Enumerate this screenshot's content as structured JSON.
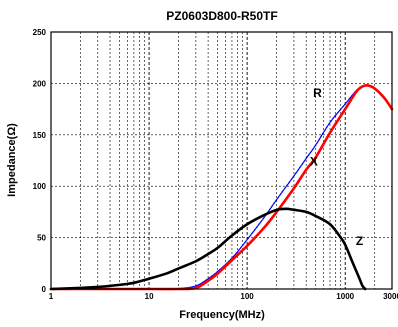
{
  "chart_data": {
    "type": "line",
    "title": "PZ0603D800-R50TF",
    "xlabel": "Frequency(MHz)",
    "ylabel": "Impedance(Ω)",
    "x_scale": "log",
    "xlim": [
      1,
      3000
    ],
    "ylim": [
      0,
      250
    ],
    "x_ticks": [
      {
        "value": 1,
        "label": "1"
      },
      {
        "value": 10,
        "label": "10"
      },
      {
        "value": 100,
        "label": "100"
      },
      {
        "value": 1000,
        "label": "1000"
      },
      {
        "value": 3000,
        "label": "3000"
      }
    ],
    "y_ticks": [
      0,
      50,
      100,
      150,
      200,
      250
    ],
    "grid": true,
    "series": [
      {
        "name": "R",
        "color": "#0000ff",
        "style": "dashed",
        "points": [
          [
            1,
            0
          ],
          [
            10,
            0
          ],
          [
            20,
            0.5
          ],
          [
            30,
            3
          ],
          [
            40,
            10
          ],
          [
            50,
            17
          ],
          [
            70,
            30
          ],
          [
            100,
            48
          ],
          [
            150,
            70
          ],
          [
            200,
            87
          ],
          [
            300,
            110
          ],
          [
            400,
            127
          ],
          [
            500,
            140
          ],
          [
            700,
            162
          ],
          [
            1000,
            180
          ],
          [
            1300,
            193
          ],
          [
            1500,
            197
          ],
          [
            1700,
            198
          ],
          [
            2000,
            195
          ],
          [
            2500,
            185
          ],
          [
            3000,
            175
          ]
        ]
      },
      {
        "name": "X",
        "color": "#ff0000",
        "style": "solid",
        "points": [
          [
            1,
            0
          ],
          [
            10,
            0
          ],
          [
            20,
            0
          ],
          [
            30,
            1
          ],
          [
            40,
            8
          ],
          [
            50,
            15
          ],
          [
            70,
            28
          ],
          [
            100,
            42
          ],
          [
            150,
            60
          ],
          [
            200,
            75
          ],
          [
            300,
            98
          ],
          [
            400,
            116
          ],
          [
            500,
            128
          ],
          [
            700,
            152
          ],
          [
            1000,
            175
          ],
          [
            1300,
            192
          ],
          [
            1500,
            197
          ],
          [
            1700,
            198
          ],
          [
            2000,
            195
          ],
          [
            2500,
            186
          ],
          [
            3000,
            175
          ]
        ]
      },
      {
        "name": "Z",
        "color": "#000000",
        "style": "solid",
        "points": [
          [
            1,
            0
          ],
          [
            2,
            1
          ],
          [
            3,
            2
          ],
          [
            5,
            4
          ],
          [
            7,
            6
          ],
          [
            10,
            10
          ],
          [
            15,
            15
          ],
          [
            20,
            20
          ],
          [
            30,
            27
          ],
          [
            40,
            34
          ],
          [
            50,
            40
          ],
          [
            70,
            52
          ],
          [
            100,
            63
          ],
          [
            150,
            72
          ],
          [
            200,
            77
          ],
          [
            250,
            78
          ],
          [
            300,
            77
          ],
          [
            400,
            75
          ],
          [
            500,
            71
          ],
          [
            700,
            63
          ],
          [
            900,
            50
          ],
          [
            1000,
            43
          ],
          [
            1200,
            25
          ],
          [
            1400,
            10
          ],
          [
            1500,
            3
          ],
          [
            1600,
            0
          ]
        ]
      }
    ]
  }
}
